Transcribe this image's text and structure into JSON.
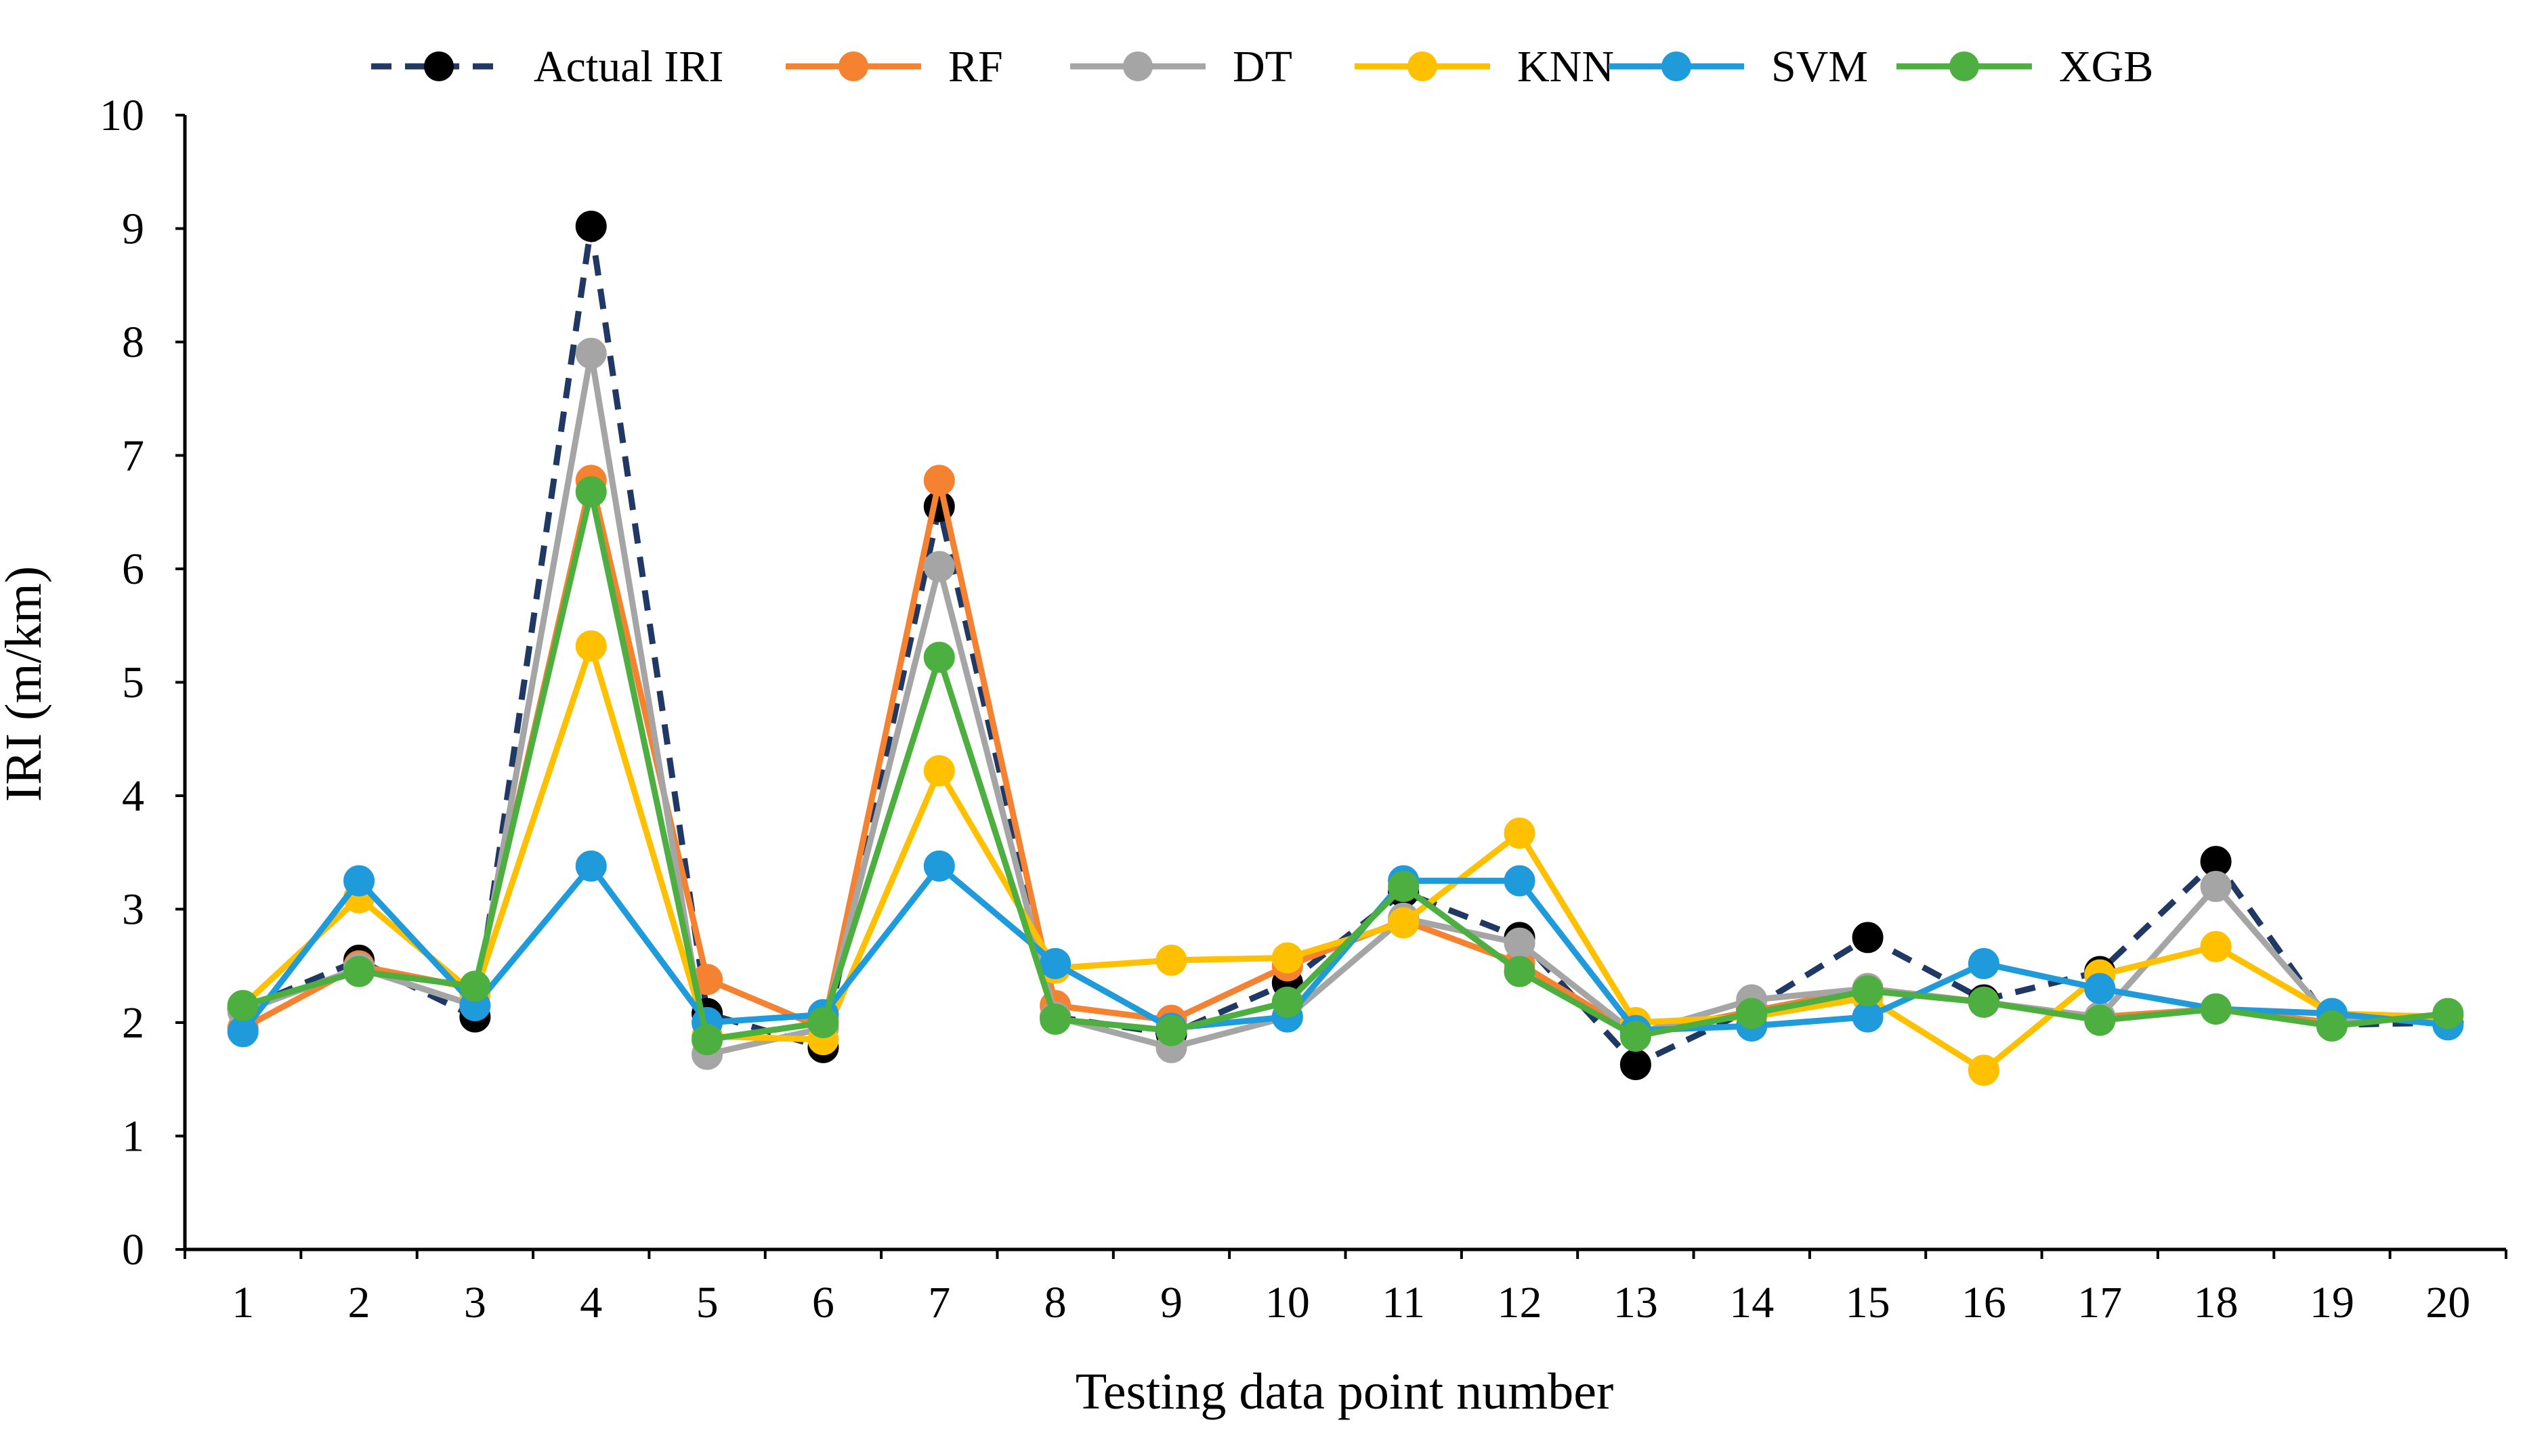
{
  "chart_data": {
    "type": "line",
    "title": "",
    "xlabel": "Testing data point number",
    "ylabel": "IRI (m/km)",
    "ylim": [
      0,
      10
    ],
    "yticks": [
      0,
      1,
      2,
      3,
      4,
      5,
      6,
      7,
      8,
      9,
      10
    ],
    "categories": [
      "1",
      "2",
      "3",
      "4",
      "5",
      "6",
      "7",
      "8",
      "9",
      "10",
      "11",
      "12",
      "13",
      "14",
      "15",
      "16",
      "17",
      "18",
      "19",
      "20"
    ],
    "grid": false,
    "legend_position": "top",
    "series": [
      {
        "name": "Actual IRI",
        "color": "#1F3864",
        "marker_color": "#000000",
        "dashed": true,
        "values": [
          2.12,
          2.55,
          2.05,
          9.02,
          2.08,
          1.78,
          6.55,
          2.05,
          1.9,
          2.35,
          3.15,
          2.75,
          1.63,
          2.12,
          2.75,
          2.2,
          2.45,
          3.42,
          1.98,
          2.0
        ]
      },
      {
        "name": "RF",
        "color": "#F58231",
        "marker_color": "#F58231",
        "dashed": false,
        "values": [
          1.95,
          2.5,
          2.3,
          6.78,
          2.38,
          1.95,
          6.78,
          2.15,
          2.02,
          2.5,
          2.9,
          2.52,
          1.9,
          2.1,
          2.3,
          2.18,
          2.05,
          2.12,
          2.0,
          2.05
        ]
      },
      {
        "name": "DT",
        "color": "#A5A5A5",
        "marker_color": "#A5A5A5",
        "dashed": false,
        "values": [
          2.1,
          2.48,
          2.15,
          7.9,
          1.72,
          1.95,
          6.02,
          2.05,
          1.78,
          2.05,
          2.92,
          2.7,
          1.9,
          2.2,
          2.3,
          2.18,
          2.05,
          3.2,
          2.02,
          2.05
        ]
      },
      {
        "name": "KNN",
        "color": "#FFC000",
        "marker_color": "#FFC000",
        "dashed": false,
        "values": [
          2.15,
          3.1,
          2.25,
          5.32,
          1.88,
          1.85,
          4.22,
          2.48,
          2.55,
          2.57,
          2.88,
          3.67,
          2.0,
          2.05,
          2.22,
          1.58,
          2.42,
          2.67,
          2.08,
          2.05
        ]
      },
      {
        "name": "SVM",
        "color": "#1F9BDC",
        "marker_color": "#1F9BDC",
        "dashed": false,
        "values": [
          1.92,
          3.25,
          2.15,
          3.38,
          2.0,
          2.07,
          3.38,
          2.52,
          1.95,
          2.05,
          3.25,
          3.25,
          1.93,
          1.97,
          2.05,
          2.52,
          2.3,
          2.12,
          2.08,
          1.98
        ]
      },
      {
        "name": "XGB",
        "color": "#4CAF3F",
        "marker_color": "#4CAF3F",
        "dashed": false,
        "values": [
          2.15,
          2.45,
          2.32,
          6.68,
          1.85,
          2.0,
          5.22,
          2.03,
          1.93,
          2.18,
          3.2,
          2.45,
          1.88,
          2.08,
          2.28,
          2.18,
          2.02,
          2.12,
          1.97,
          2.08
        ]
      }
    ]
  }
}
